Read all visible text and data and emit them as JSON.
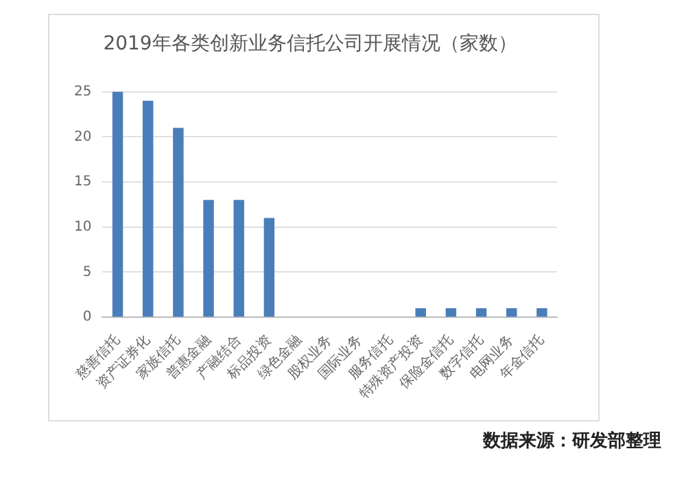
{
  "chart_data": {
    "type": "bar",
    "title": "2019年各类创新业务信托公司开展情况（家数）",
    "categories": [
      "慈善信托",
      "资产证券化",
      "家族信托",
      "普惠金融",
      "产融结合",
      "标品投资",
      "绿色金融",
      "股权业务",
      "国际业务",
      "服务信托",
      "特殊资产投资",
      "保险金信托",
      "数字信托",
      "电网业务",
      "年金信托"
    ],
    "values": [
      25,
      24,
      21,
      13,
      13,
      11,
      null,
      null,
      null,
      null,
      1,
      1,
      1,
      1,
      1
    ],
    "color": "#4a7ebb",
    "ylim": [
      0,
      25
    ],
    "yticks": [
      0,
      5,
      10,
      15,
      20,
      25
    ],
    "grid": "y",
    "annotations": [
      "数据来源：研发部整理"
    ]
  }
}
